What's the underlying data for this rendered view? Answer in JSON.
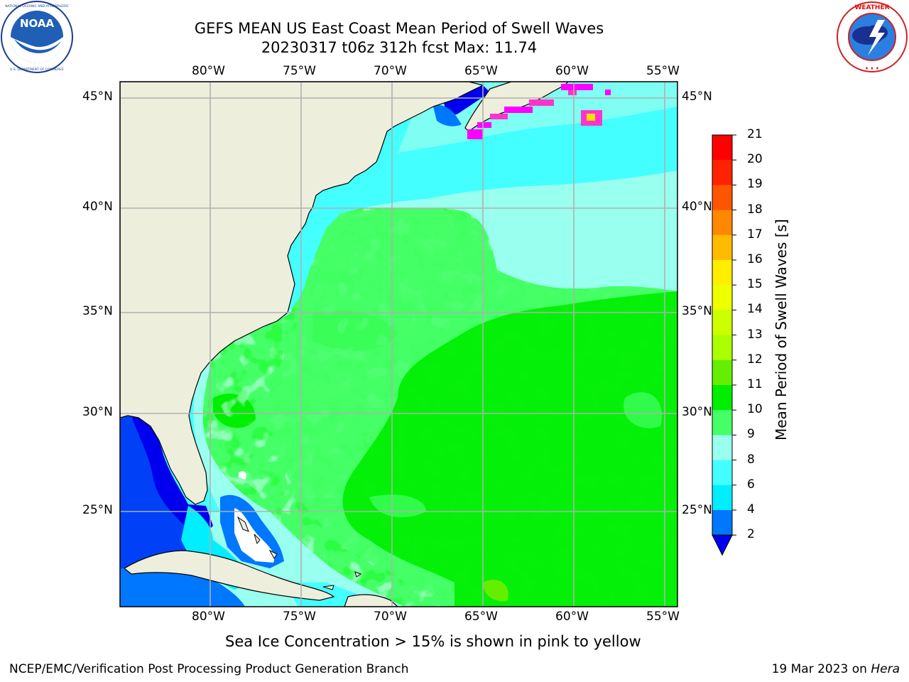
{
  "header": {
    "title_line1": "GEFS MEAN US East Coast Mean Period of Swell Waves",
    "title_line2": "20230317 t06z 312h fcst   Max: 11.74"
  },
  "logos": {
    "left": {
      "name": "NOAA",
      "ring_text": "NATIONAL OCEANIC AND ATMOSPHERIC ADMINISTRATION · U.S. DEPARTMENT OF COMMERCE"
    },
    "right": {
      "name": "NATIONAL WEATHER SERVICE"
    }
  },
  "map": {
    "lon_labels": [
      "80°W",
      "75°W",
      "70°W",
      "65°W",
      "60°W",
      "55°W"
    ],
    "lat_labels": [
      "45°N",
      "40°N",
      "35°N",
      "30°N",
      "25°N"
    ],
    "colors": {
      "land": "#eeeedd",
      "grid": "#b0b0b0",
      "ice_pink": "#ff33cc",
      "ice_magenta": "#ff00ff",
      "ice_yellow": "#ffdd00"
    }
  },
  "colorbar": {
    "label": "Mean Period of Swell Waves [s]",
    "ticks": [
      "21",
      "20",
      "19",
      "18",
      "17",
      "16",
      "15",
      "14",
      "13",
      "12",
      "11",
      "10",
      "9",
      "8",
      "6",
      "4",
      "2"
    ],
    "bins": [
      {
        "range": "20-21",
        "color": "#ff0000"
      },
      {
        "range": "19-20",
        "color": "#ff2200"
      },
      {
        "range": "18-19",
        "color": "#ff5500"
      },
      {
        "range": "17-18",
        "color": "#ff8800"
      },
      {
        "range": "16-17",
        "color": "#ffbb00"
      },
      {
        "range": "15-16",
        "color": "#ffee00"
      },
      {
        "range": "14-15",
        "color": "#eeff00"
      },
      {
        "range": "13-14",
        "color": "#ccff00"
      },
      {
        "range": "12-13",
        "color": "#aaff00"
      },
      {
        "range": "11-12",
        "color": "#66ee00"
      },
      {
        "range": "10-11",
        "color": "#00ee00"
      },
      {
        "range": "9-10",
        "color": "#44ff66"
      },
      {
        "range": "8-9",
        "color": "#99ffee"
      },
      {
        "range": "6-8",
        "color": "#44ffff"
      },
      {
        "range": "4-6",
        "color": "#00eeff"
      },
      {
        "range": "2-4",
        "color": "#0077ff"
      },
      {
        "range": "<2",
        "color": "#0000ee"
      }
    ]
  },
  "caption": "Sea Ice Concentration > 15% is shown in pink to yellow",
  "footer": {
    "left": "NCEP/EMC/Verification Post Processing Product Generation Branch",
    "right_date": "19 Mar 2023 on ",
    "right_host": "Hera"
  }
}
